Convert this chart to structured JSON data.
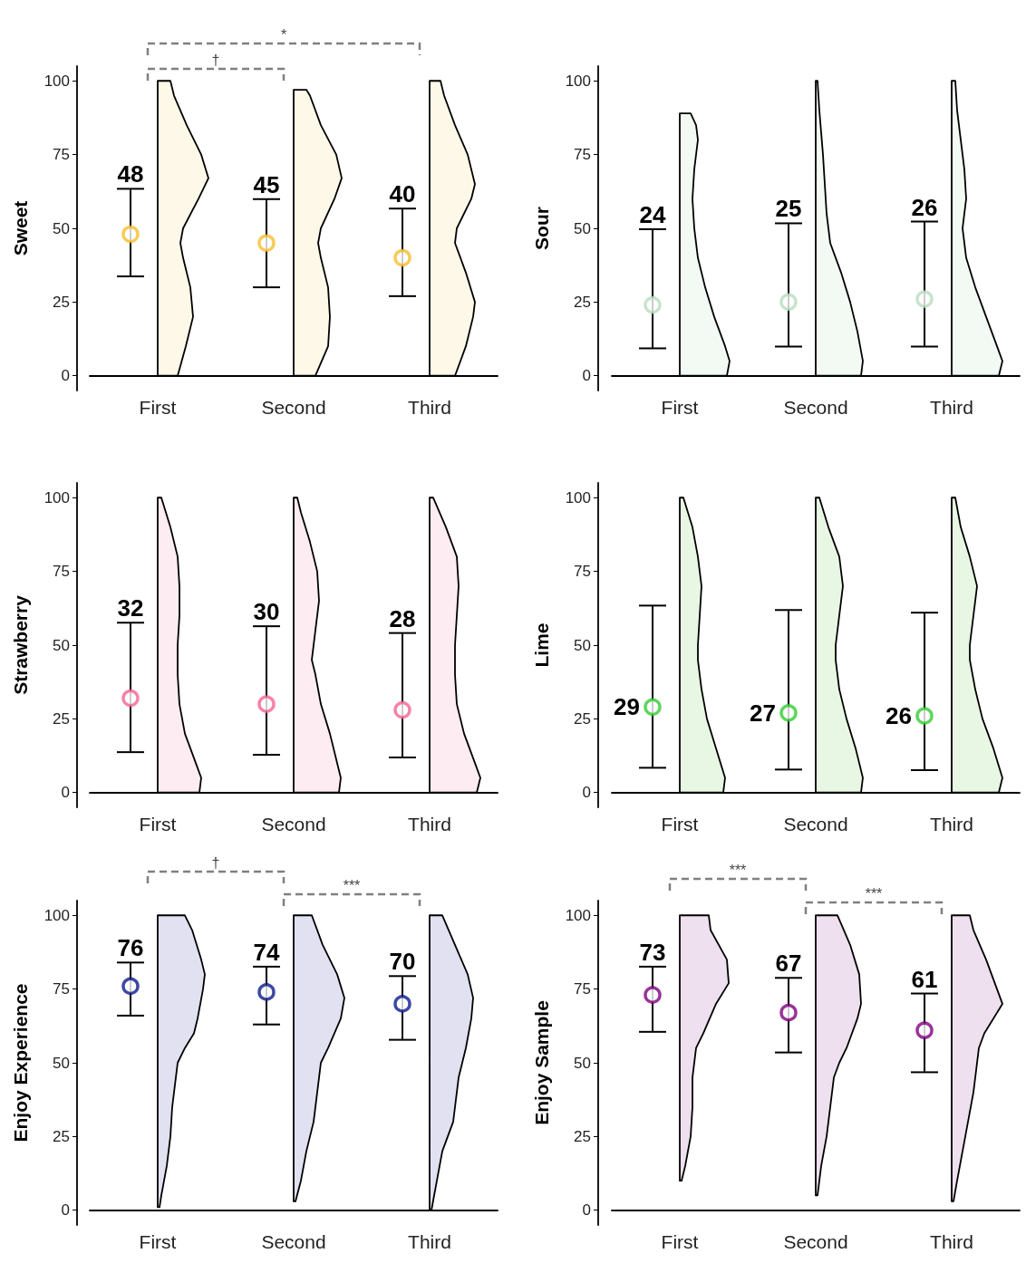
{
  "chart_data": [
    {
      "type": "scatter",
      "ylabel": "Sweet",
      "categories": [
        "First",
        "Second",
        "Third"
      ],
      "ylim": [
        -5,
        105
      ],
      "yticks": [
        0,
        25,
        50,
        75,
        100
      ],
      "marker": "circle",
      "annotations": [
        "*",
        "†"
      ],
      "series": [
        {
          "color": "#f7bd2f",
          "values": [
            48,
            45,
            40
          ],
          "errors": [
            [
              33.7,
              63.4
            ],
            [
              30,
              59.9
            ],
            [
              27,
              56.7
            ]
          ],
          "value_labels": [
            "48",
            "45",
            "40"
          ]
        }
      ]
    },
    {
      "type": "scatter",
      "ylabel": "Sour",
      "categories": [
        "First",
        "Second",
        "Third"
      ],
      "ylim": [
        -5,
        105
      ],
      "yticks": [
        0,
        25,
        50,
        75,
        100
      ],
      "marker": "circle",
      "series": [
        {
          "color": "#b9dcc0",
          "values": [
            24,
            25,
            26
          ],
          "errors": [
            [
              9.3,
              49.7
            ],
            [
              9.9,
              51.7
            ],
            [
              9.9,
              52.3
            ]
          ],
          "value_labels": [
            "24",
            "25",
            "26"
          ]
        }
      ]
    },
    {
      "type": "scatter",
      "ylabel": "Strawberry",
      "categories": [
        "First",
        "Second",
        "Third"
      ],
      "ylim": [
        -5,
        105
      ],
      "yticks": [
        0,
        25,
        50,
        75,
        100
      ],
      "marker": "circle",
      "series": [
        {
          "color": "#f4648f",
          "values": [
            32,
            30,
            28
          ],
          "errors": [
            [
              13.7,
              57.6
            ],
            [
              12.8,
              56.4
            ],
            [
              11.9,
              54.1
            ]
          ],
          "value_labels": [
            "32",
            "30",
            "28"
          ]
        }
      ]
    },
    {
      "type": "scatter",
      "ylabel": "Lime",
      "categories": [
        "First",
        "Second",
        "Third"
      ],
      "ylim": [
        -5,
        105
      ],
      "yticks": [
        0,
        25,
        50,
        75,
        100
      ],
      "marker": "circle",
      "series": [
        {
          "color": "#33cc33",
          "values": [
            29,
            27,
            26
          ],
          "errors": [
            [
              8.4,
              63.4
            ],
            [
              7.8,
              61.9
            ],
            [
              7.6,
              61
            ]
          ],
          "value_labels": [
            "29",
            "27",
            "26"
          ]
        }
      ]
    },
    {
      "type": "scatter",
      "ylabel": "Enjoy Experience",
      "categories": [
        "First",
        "Second",
        "Third"
      ],
      "ylim": [
        -5,
        105
      ],
      "yticks": [
        0,
        25,
        50,
        75,
        100
      ],
      "marker": "circle",
      "annotations": [
        "†",
        "***"
      ],
      "series": [
        {
          "color": "#0b1a8c",
          "values": [
            76,
            74,
            70
          ],
          "errors": [
            [
              66,
              84
            ],
            [
              63,
              82.6
            ],
            [
              57.8,
              79.4
            ]
          ],
          "value_labels": [
            "76",
            "74",
            "70"
          ]
        }
      ]
    },
    {
      "type": "scatter",
      "ylabel": "Enjoy Sample",
      "categories": [
        "First",
        "Second",
        "Third"
      ],
      "ylim": [
        -5,
        105
      ],
      "yticks": [
        0,
        25,
        50,
        75,
        100
      ],
      "marker": "circle",
      "annotations": [
        "***",
        "***"
      ],
      "series": [
        {
          "color": "#800080",
          "values": [
            73,
            67,
            61
          ],
          "errors": [
            [
              60.5,
              82.6
            ],
            [
              53.5,
              78.8
            ],
            [
              46.8,
              73.5
            ]
          ],
          "value_labels": [
            "73",
            "67",
            "61"
          ]
        }
      ]
    }
  ]
}
